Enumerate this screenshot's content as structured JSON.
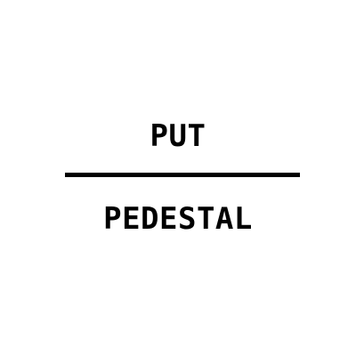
{
  "top_text": "PUT",
  "bottom_text": "PEDESTAL",
  "colors": {
    "background": "#ffffff",
    "text": "#000000",
    "divider": "#000000"
  }
}
